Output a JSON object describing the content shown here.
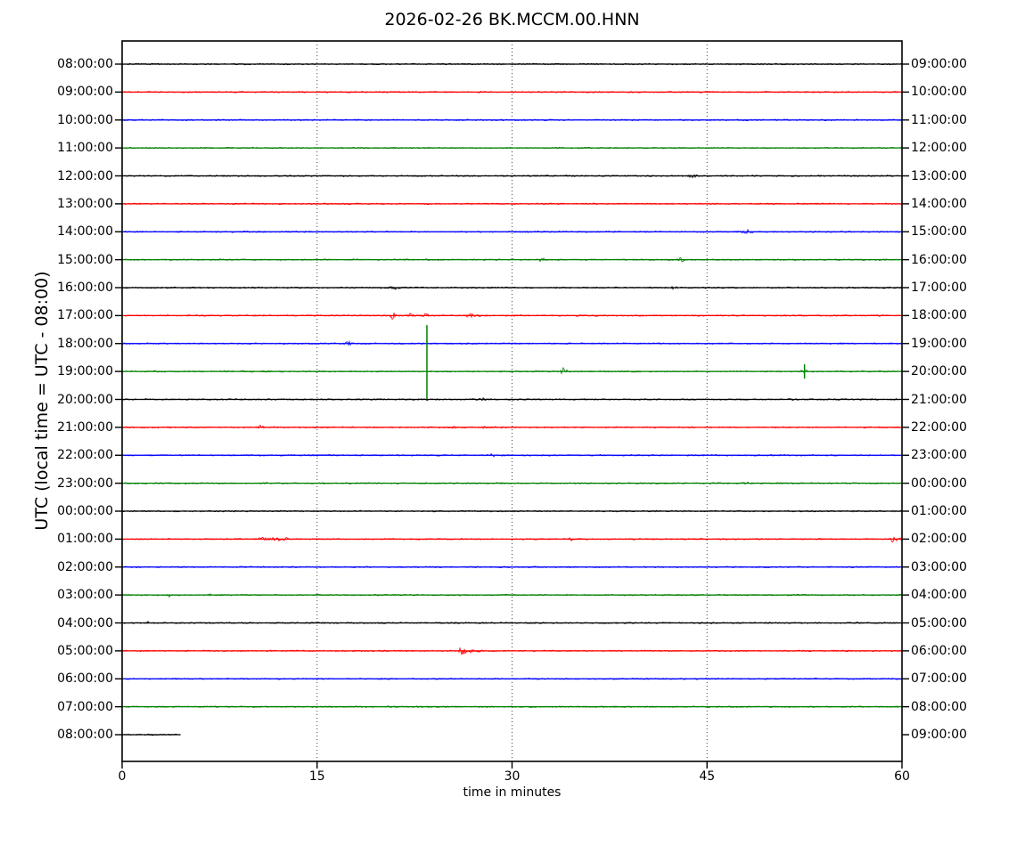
{
  "chart_data": {
    "type": "line",
    "subtype": "helicorder-dayplot",
    "title": "2026-02-26 BK.MCCM.00.HNN",
    "xlabel": "time in minutes",
    "ylabel": "UTC (local time = UTC - 08:00)",
    "x_range": [
      0,
      60
    ],
    "x_ticks": [
      0,
      15,
      30,
      45,
      60
    ],
    "grid": {
      "vertical_dotted_at": [
        15,
        30,
        45
      ]
    },
    "minutes_per_row": 60,
    "trace_color_cycle": [
      "#000000",
      "#ff0000",
      "#0000ff",
      "#008000"
    ],
    "rows": [
      {
        "utc_left": "08:00:00",
        "local_right": "09:00:00",
        "color": "#000000",
        "events": []
      },
      {
        "utc_left": "09:00:00",
        "local_right": "10:00:00",
        "color": "#ff0000",
        "events": []
      },
      {
        "utc_left": "10:00:00",
        "local_right": "11:00:00",
        "color": "#0000ff",
        "events": []
      },
      {
        "utc_left": "11:00:00",
        "local_right": "12:00:00",
        "color": "#008000",
        "events": []
      },
      {
        "utc_left": "12:00:00",
        "local_right": "13:00:00",
        "color": "#000000",
        "events": [
          {
            "shape": "blip",
            "t": 43.8,
            "amp": 2,
            "w": 0.5
          }
        ]
      },
      {
        "utc_left": "13:00:00",
        "local_right": "14:00:00",
        "color": "#ff0000",
        "events": []
      },
      {
        "utc_left": "14:00:00",
        "local_right": "15:00:00",
        "color": "#0000ff",
        "events": [
          {
            "shape": "blip",
            "t": 48.1,
            "amp": 2,
            "w": 0.5
          }
        ]
      },
      {
        "utc_left": "15:00:00",
        "local_right": "16:00:00",
        "color": "#008000",
        "events": [
          {
            "shape": "blip",
            "t": 32.3,
            "amp": 2,
            "w": 0.35
          },
          {
            "shape": "blip",
            "t": 43.0,
            "amp": 2.5,
            "w": 0.35
          }
        ]
      },
      {
        "utc_left": "16:00:00",
        "local_right": "17:00:00",
        "color": "#000000",
        "events": [
          {
            "shape": "blip",
            "t": 21.0,
            "amp": 1.5,
            "w": 0.6
          },
          {
            "shape": "blip",
            "t": 42.5,
            "amp": 1.5,
            "w": 0.35
          }
        ]
      },
      {
        "utc_left": "17:00:00",
        "local_right": "18:00:00",
        "color": "#ff0000",
        "events": [
          {
            "shape": "blip",
            "t": 20.8,
            "amp": 4,
            "w": 0.4
          },
          {
            "shape": "blip",
            "t": 22.2,
            "amp": 2.5,
            "w": 0.3
          },
          {
            "shape": "blip",
            "t": 23.4,
            "amp": 2.5,
            "w": 0.25
          },
          {
            "shape": "arrow",
            "t": 26.6,
            "amp": 3.5,
            "w": 0.9
          }
        ]
      },
      {
        "utc_left": "18:00:00",
        "local_right": "19:00:00",
        "color": "#0000ff",
        "events": [
          {
            "shape": "blip",
            "t": 17.4,
            "amp": 2,
            "w": 0.4
          }
        ]
      },
      {
        "utc_left": "19:00:00",
        "local_right": "20:00:00",
        "color": "#008000",
        "events": [
          {
            "shape": "spike",
            "t": 23.45,
            "up": 52,
            "down": 33
          },
          {
            "shape": "blip",
            "t": 34.0,
            "amp": 4.5,
            "w": 0.35
          },
          {
            "shape": "spike",
            "t": 52.5,
            "up": 8,
            "down": 8
          },
          {
            "shape": "blip",
            "t": 52.5,
            "amp": 3,
            "w": 0.3
          }
        ]
      },
      {
        "utc_left": "20:00:00",
        "local_right": "21:00:00",
        "color": "#000000",
        "events": [
          {
            "shape": "blip",
            "t": 27.5,
            "amp": 1.8,
            "w": 0.6
          },
          {
            "shape": "blip",
            "t": 51.5,
            "amp": 1.4,
            "w": 0.35
          }
        ]
      },
      {
        "utc_left": "21:00:00",
        "local_right": "22:00:00",
        "color": "#ff0000",
        "events": [
          {
            "shape": "blip",
            "t": 10.7,
            "amp": 2,
            "w": 0.35
          },
          {
            "shape": "blip",
            "t": 25.5,
            "amp": 1.4,
            "w": 0.25
          },
          {
            "shape": "blip",
            "t": 27.8,
            "amp": 1.4,
            "w": 0.25
          }
        ]
      },
      {
        "utc_left": "22:00:00",
        "local_right": "23:00:00",
        "color": "#0000ff",
        "events": [
          {
            "shape": "blip",
            "t": 28.4,
            "amp": 1.8,
            "w": 0.35
          }
        ]
      },
      {
        "utc_left": "23:00:00",
        "local_right": "00:00:00",
        "color": "#008000",
        "events": [
          {
            "shape": "blip",
            "t": 48.0,
            "amp": 1.5,
            "w": 0.4
          }
        ]
      },
      {
        "utc_left": "00:00:00",
        "local_right": "01:00:00",
        "color": "#000000",
        "events": []
      },
      {
        "utc_left": "01:00:00",
        "local_right": "02:00:00",
        "color": "#ff0000",
        "events": [
          {
            "shape": "noise",
            "t": 11.6,
            "amp": 1.2,
            "w": 1.2
          },
          {
            "shape": "blip",
            "t": 34.5,
            "amp": 1.6,
            "w": 0.3
          },
          {
            "shape": "arrow",
            "t": 59.2,
            "amp": 4.5,
            "w": 0.8
          }
        ]
      },
      {
        "utc_left": "02:00:00",
        "local_right": "03:00:00",
        "color": "#0000ff",
        "events": []
      },
      {
        "utc_left": "03:00:00",
        "local_right": "04:00:00",
        "color": "#008000",
        "events": [
          {
            "shape": "blip",
            "t": 3.6,
            "amp": 1.8,
            "w": 0.25
          },
          {
            "shape": "blip",
            "t": 6.7,
            "amp": 1.8,
            "w": 0.25
          }
        ]
      },
      {
        "utc_left": "04:00:00",
        "local_right": "05:00:00",
        "color": "#000000",
        "events": [
          {
            "shape": "blip",
            "t": 2.1,
            "amp": 1.8,
            "w": 0.25
          }
        ]
      },
      {
        "utc_left": "05:00:00",
        "local_right": "06:00:00",
        "color": "#ff0000",
        "events": [
          {
            "shape": "arrow",
            "t": 26.0,
            "amp": 6.5,
            "w": 1.2
          }
        ]
      },
      {
        "utc_left": "06:00:00",
        "local_right": "07:00:00",
        "color": "#0000ff",
        "events": []
      },
      {
        "utc_left": "07:00:00",
        "local_right": "08:00:00",
        "color": "#008000",
        "events": []
      },
      {
        "utc_left": "08:00:00",
        "local_right": "09:00:00",
        "color": "#000000",
        "end_min": 4.5,
        "events": []
      }
    ]
  }
}
